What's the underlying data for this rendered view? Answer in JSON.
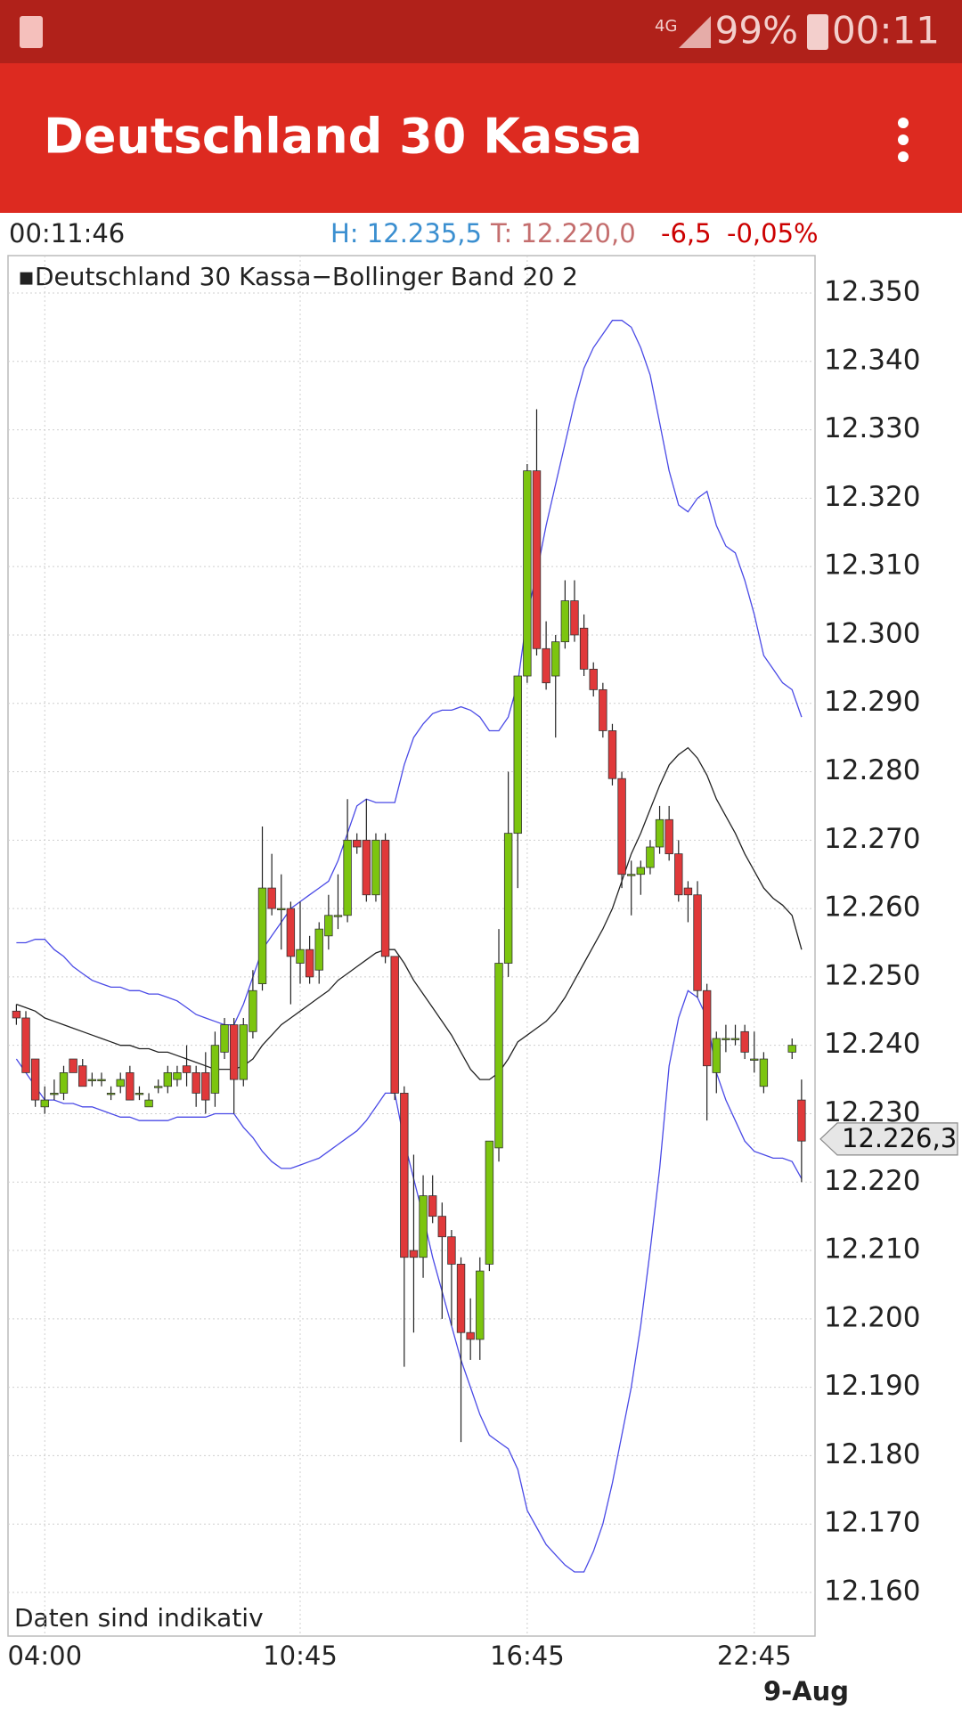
{
  "status_bar": {
    "network": "4G",
    "battery": "99%",
    "time": "00:11"
  },
  "app_bar": {
    "title": "Deutschland 30 Kassa"
  },
  "info": {
    "time": "00:11:46",
    "high": "H: 12.235,5",
    "low": "T: 12.220,0",
    "change": "-6,5",
    "change_pct": "-0,05%"
  },
  "chart_data": {
    "type": "candlestick",
    "legend": "Deutschland 30 Kassa−Bollinger Band 20 2",
    "annotation": "Daten sind indikativ",
    "date_label": "9-Aug",
    "up_color": "#7cc50f",
    "down_color": "#e0393a",
    "categories": [
      null,
      null,
      null,
      "04:00",
      null,
      null,
      null,
      null,
      null,
      null,
      null,
      null,
      null,
      null,
      null,
      null,
      null,
      null,
      null,
      null,
      null,
      null,
      null,
      null,
      null,
      null,
      null,
      null,
      null,
      null,
      "10:45",
      null,
      null,
      null,
      null,
      null,
      null,
      null,
      null,
      null,
      null,
      null,
      null,
      null,
      null,
      null,
      null,
      null,
      null,
      null,
      null,
      null,
      null,
      null,
      "16:45",
      null,
      null,
      null,
      null,
      null,
      null,
      null,
      null,
      null,
      null,
      null,
      null,
      null,
      null,
      null,
      null,
      null,
      null,
      null,
      null,
      null,
      null,
      null,
      "22:45",
      null,
      null,
      null,
      null,
      null
    ],
    "open": [
      12245,
      12244,
      12238,
      12231,
      12233,
      12233,
      12238,
      12237,
      12235,
      12235,
      12233,
      12234,
      12236,
      12233,
      12231,
      12234,
      12234,
      12235,
      12237,
      12236,
      12236,
      12233,
      12239,
      12243,
      12235,
      12242,
      12249,
      12263,
      12260,
      12260,
      12252,
      12254,
      12251,
      12256,
      12259,
      12259,
      12270,
      12270,
      12262,
      12270,
      12253,
      12233,
      12210,
      12209,
      12218,
      12215,
      12212,
      12208,
      12198,
      12197,
      12208,
      12225,
      12252,
      12271,
      12294,
      12324,
      12298,
      12294,
      12299,
      12305,
      12301,
      12295,
      12292,
      12286,
      12279,
      12265,
      12265,
      12266,
      12269,
      12273,
      12268,
      12263,
      12262,
      12248,
      12236,
      12241,
      12241,
      12242,
      12238,
      12234,
      null,
      null,
      12239,
      12232
    ],
    "high": [
      12246,
      12245,
      12238,
      12234,
      12235,
      12237,
      12238,
      12238,
      12236,
      12236,
      12234,
      12236,
      12237,
      12234,
      12233,
      12235,
      12237,
      12237,
      12240,
      12237,
      12239,
      12242,
      12244,
      12244,
      12244,
      12251,
      12272,
      12268,
      12265,
      12261,
      12261,
      12256,
      12258,
      12262,
      12265,
      12276,
      12271,
      12276,
      12271,
      12271,
      12253,
      12234,
      12224,
      12221,
      12221,
      12217,
      12213,
      12209,
      12203,
      12209,
      12226,
      12257,
      12280,
      12294,
      12325,
      12333,
      12302,
      12300,
      12308,
      12308,
      12303,
      12296,
      12293,
      12287,
      12280,
      12267,
      12267,
      12270,
      12275,
      12275,
      12270,
      12264,
      12264,
      12249,
      12242,
      12243,
      12243,
      12243,
      12242,
      12239,
      null,
      null,
      12241,
      12235
    ],
    "low": [
      12243,
      12236,
      12231,
      12230,
      12232,
      12232,
      12236,
      12234,
      12234,
      12234,
      12232,
      12233,
      12232,
      12232,
      12231,
      12233,
      12233,
      12234,
      12234,
      12231,
      12230,
      12231,
      12238,
      12230,
      12234,
      12241,
      12248,
      12259,
      12254,
      12246,
      12249,
      12249,
      12249,
      12254,
      12257,
      12258,
      12268,
      12261,
      12261,
      12252,
      12232,
      12193,
      12198,
      12206,
      12214,
      12200,
      12199,
      12182,
      12194,
      12194,
      12207,
      12223,
      12250,
      12263,
      12293,
      12297,
      12292,
      12285,
      12298,
      12299,
      12294,
      12291,
      12285,
      12278,
      12263,
      12259,
      12262,
      12265,
      12268,
      12267,
      12261,
      12258,
      12247,
      12229,
      12233,
      12239,
      12240,
      12238,
      12236,
      12233,
      null,
      null,
      12238,
      12220
    ],
    "close": [
      12244,
      12236,
      12232,
      12232,
      12233,
      12236,
      12236,
      12234,
      12235,
      12235,
      12233,
      12235,
      12232,
      12233,
      12232,
      12234,
      12236,
      12236,
      12236,
      12233,
      12232,
      12240,
      12243,
      12235,
      12243,
      12248,
      12263,
      12260,
      12260,
      12253,
      12254,
      12250,
      12257,
      12259,
      12259,
      12270,
      12269,
      12262,
      12270,
      12253,
      12233,
      12209,
      12209,
      12218,
      12215,
      12212,
      12208,
      12198,
      12197,
      12207,
      12226,
      12252,
      12271,
      12294,
      12324,
      12298,
      12293,
      12299,
      12305,
      12300,
      12295,
      12292,
      12286,
      12279,
      12265,
      12265,
      12266,
      12269,
      12273,
      12268,
      12262,
      12262,
      12248,
      12237,
      12241,
      12241,
      12241,
      12239,
      12238,
      12238,
      null,
      null,
      12240,
      12226
    ],
    "series": [
      {
        "color": "#4a4ae6",
        "values": [
          12255,
          12255,
          12255.5,
          12255.5,
          12254,
          12253,
          12251.5,
          12250.5,
          12249.5,
          12249,
          12248.5,
          12248.5,
          12248,
          12248,
          12247.5,
          12247.5,
          12247,
          12246.5,
          12245.5,
          12244.5,
          12244,
          12243.5,
          12243,
          12243,
          12246,
          12250,
          12254,
          12256,
          12258,
          12260,
          12261,
          12262,
          12263,
          12264,
          12267,
          12271,
          12275,
          12276,
          12275.5,
          12275.5,
          12275.5,
          12281,
          12285,
          12287,
          12288.5,
          12289,
          12289,
          12289.5,
          12289,
          12288,
          12286,
          12286,
          12288,
          12293,
          12303,
          12309,
          12316,
          12322,
          12328,
          12334,
          12339,
          12342,
          12344,
          12346,
          12346,
          12345,
          12342,
          12338,
          12331,
          12324,
          12319,
          12318,
          12320,
          12321,
          12316,
          12313,
          12312,
          12308,
          12303,
          12297,
          12295,
          12293,
          12292,
          12288
        ]
      },
      {
        "color": "#222222",
        "values": [
          12246,
          12245.5,
          12245,
          12244,
          12243.5,
          12243,
          12242.5,
          12242,
          12241.5,
          12241,
          12240.5,
          12240,
          12240,
          12239.5,
          12239.5,
          12239,
          12239,
          12238.5,
          12238,
          12237.5,
          12237,
          12236.5,
          12236.5,
          12236.5,
          12237,
          12238,
          12240,
          12241.5,
          12243,
          12244,
          12245,
          12246,
          12247,
          12248,
          12249.5,
          12250.5,
          12251.5,
          12252.5,
          12253.5,
          12254,
          12254,
          12252,
          12249.5,
          12247.5,
          12245.5,
          12243.5,
          12241.5,
          12239,
          12236.5,
          12235,
          12235,
          12236,
          12238,
          12240.5,
          12241.5,
          12242.5,
          12243.5,
          12245,
          12247,
          12249.5,
          12252,
          12254.5,
          12257,
          12260,
          12264,
          12268,
          12271,
          12274.5,
          12278,
          12281,
          12282.5,
          12283.5,
          12282,
          12279.5,
          12276,
          12273.5,
          12271,
          12268,
          12265.5,
          12263,
          12261.5,
          12260.5,
          12259,
          12254
        ]
      },
      {
        "color": "#4a4ae6",
        "values": [
          12238,
          12236,
          12234,
          12232,
          12232,
          12231.5,
          12231.5,
          12231,
          12231,
          12230.5,
          12230,
          12229.5,
          12229.5,
          12229,
          12229,
          12229,
          12229,
          12229.5,
          12229.5,
          12229.5,
          12229.5,
          12230,
          12230,
          12230,
          12228,
          12226.5,
          12224.5,
          12223,
          12222,
          12222,
          12222.5,
          12223,
          12223.5,
          12224.5,
          12225.5,
          12226.5,
          12227.5,
          12229,
          12231,
          12233,
          12233,
          12226,
          12220.5,
          12215,
          12209,
          12204,
          12199,
          12194,
          12190,
          12186,
          12183,
          12182,
          12181,
          12178,
          12172,
          12169.5,
          12167,
          12165.5,
          12164,
          12163,
          12163,
          12166,
          12170,
          12176,
          12183,
          12190,
          12199,
          12210,
          12222,
          12237,
          12244,
          12248,
          12247,
          12244,
          12236,
          12232,
          12229,
          12226,
          12224.5,
          12224,
          12223.5,
          12223.5,
          12223,
          12220.5
        ]
      }
    ],
    "last_price": {
      "value": 12226.3,
      "label": "12.226,3"
    },
    "ylim": [
      12160,
      12350
    ],
    "yticks": [
      {
        "value": 12160,
        "label": "12.160"
      },
      {
        "value": 12170,
        "label": "12.170"
      },
      {
        "value": 12180,
        "label": "12.180"
      },
      {
        "value": 12190,
        "label": "12.190"
      },
      {
        "value": 12200,
        "label": "12.200"
      },
      {
        "value": 12210,
        "label": "12.210"
      },
      {
        "value": 12220,
        "label": "12.220"
      },
      {
        "value": 12230,
        "label": "12.230"
      },
      {
        "value": 12240,
        "label": "12.240"
      },
      {
        "value": 12250,
        "label": "12.250"
      },
      {
        "value": 12260,
        "label": "12.260"
      },
      {
        "value": 12270,
        "label": "12.270"
      },
      {
        "value": 12280,
        "label": "12.280"
      },
      {
        "value": 12290,
        "label": "12.290"
      },
      {
        "value": 12300,
        "label": "12.300"
      },
      {
        "value": 12310,
        "label": "12.310"
      },
      {
        "value": 12320,
        "label": "12.320"
      },
      {
        "value": 12330,
        "label": "12.330"
      },
      {
        "value": 12340,
        "label": "12.340"
      },
      {
        "value": 12350,
        "label": "12.350"
      }
    ],
    "grid": true
  }
}
